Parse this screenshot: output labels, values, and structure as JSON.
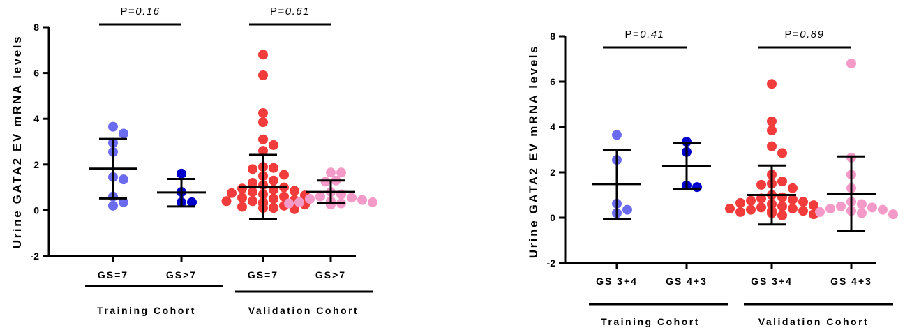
{
  "chart_data": [
    {
      "type": "scatter",
      "ylabel": "Urine GATA2 EV mRNA levels",
      "ylim": [
        -2,
        8
      ],
      "yticks": [
        "-2",
        "0",
        "2",
        "4",
        "6",
        "8"
      ],
      "categories": [
        "GS=7",
        "GS>7",
        "GS=7",
        "GS>7"
      ],
      "groups": [
        {
          "label": "Training Cohort",
          "categories": [
            0,
            1
          ]
        },
        {
          "label": "Validation Cohort",
          "categories": [
            2,
            3
          ]
        }
      ],
      "comparisons": [
        {
          "label": "P=",
          "value": "0.16",
          "categories": [
            0,
            1
          ]
        },
        {
          "label": "P=",
          "value": "0.61",
          "categories": [
            2,
            3
          ]
        }
      ],
      "series": [
        {
          "color": "#6b6bf0",
          "mean": 1.82,
          "sd_low": 0.52,
          "sd_high": 3.12,
          "points": [
            3.65,
            3.35,
            2.95,
            2.55,
            1.45,
            1.35,
            0.6,
            0.35,
            0.2
          ]
        },
        {
          "color": "#0000cc",
          "mean": 0.78,
          "sd_low": 0.17,
          "sd_high": 1.37,
          "points": [
            1.6,
            0.8,
            0.35,
            0.35
          ]
        },
        {
          "color": "#f23c3c",
          "mean": 1.02,
          "sd_low": -0.38,
          "sd_high": 2.42,
          "points": [
            6.8,
            5.9,
            4.25,
            3.85,
            3.1,
            2.85,
            2.6,
            1.9,
            1.85,
            1.8,
            1.55,
            1.5,
            1.3,
            1.2,
            1.1,
            1.0,
            0.95,
            0.9,
            0.85,
            0.8,
            0.75,
            0.7,
            0.65,
            0.6,
            0.55,
            0.5,
            0.45,
            0.4,
            0.4,
            0.35,
            0.3,
            0.3,
            0.25,
            0.2,
            0.15,
            0.1,
            0.1,
            0.05
          ]
        },
        {
          "color": "#f49ac8",
          "mean": 0.8,
          "sd_low": 0.3,
          "sd_high": 1.3,
          "points": [
            1.65,
            1.65,
            1.3,
            1.25,
            0.8,
            0.7,
            0.6,
            0.55,
            0.5,
            0.45,
            0.4,
            0.35,
            0.35,
            0.3,
            0.3,
            0.25
          ]
        }
      ]
    },
    {
      "type": "scatter",
      "ylabel": "Urine GATA2 EV mRNA levels",
      "ylim": [
        -2,
        8
      ],
      "yticks": [
        "-2",
        "0",
        "2",
        "4",
        "6",
        "8"
      ],
      "categories": [
        "GS 3+4",
        "GS 4+3",
        "GS 3+4",
        "GS 4+3"
      ],
      "groups": [
        {
          "label": "Training Cohort",
          "categories": [
            0,
            1
          ]
        },
        {
          "label": "Validation Cohort",
          "categories": [
            2,
            3
          ]
        }
      ],
      "comparisons": [
        {
          "label": "P=",
          "value": "0.41",
          "categories": [
            0,
            1
          ]
        },
        {
          "label": "P=",
          "value": "0.89",
          "categories": [
            2,
            3
          ]
        }
      ],
      "series": [
        {
          "color": "#6b6bf0",
          "mean": 1.48,
          "sd_low": -0.05,
          "sd_high": 3.0,
          "points": [
            3.65,
            2.55,
            0.62,
            0.35,
            0.2
          ]
        },
        {
          "color": "#0000cc",
          "mean": 2.28,
          "sd_low": 1.25,
          "sd_high": 3.3,
          "points": [
            3.35,
            2.9,
            1.42,
            1.35
          ]
        },
        {
          "color": "#f23c3c",
          "mean": 1.0,
          "sd_low": -0.3,
          "sd_high": 2.3,
          "points": [
            5.9,
            4.25,
            3.85,
            3.15,
            2.85,
            1.9,
            1.6,
            1.5,
            1.45,
            1.3,
            1.0,
            0.9,
            0.85,
            0.8,
            0.75,
            0.7,
            0.65,
            0.6,
            0.55,
            0.5,
            0.45,
            0.4,
            0.4,
            0.35,
            0.3,
            0.3,
            0.25,
            0.2,
            0.15,
            0.1
          ]
        },
        {
          "color": "#f49ac8",
          "mean": 1.05,
          "sd_low": -0.6,
          "sd_high": 2.7,
          "points": [
            6.8,
            2.65,
            1.9,
            1.3,
            0.7,
            0.6,
            0.5,
            0.45,
            0.4,
            0.35,
            0.3,
            0.25,
            0.2,
            0.15
          ]
        }
      ]
    }
  ]
}
